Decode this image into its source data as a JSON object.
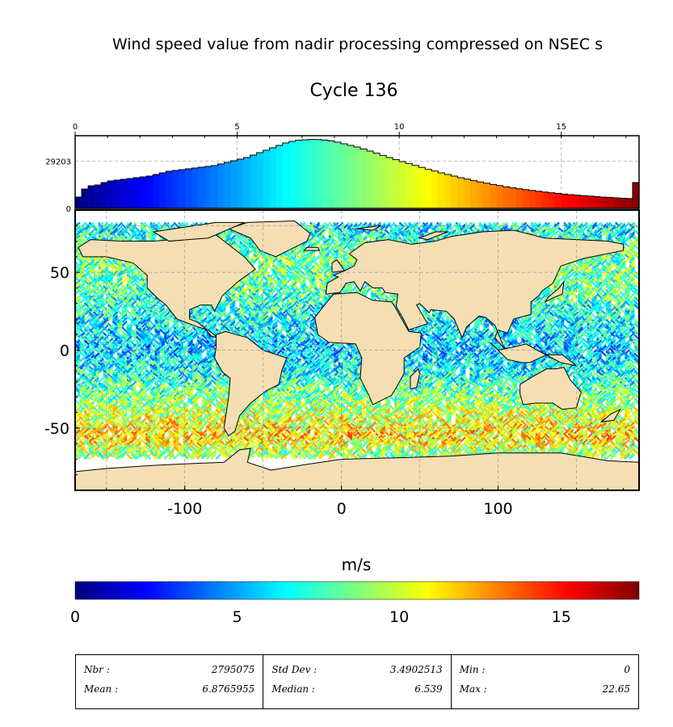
{
  "figure": {
    "title": "Wind speed value from nadir processing compressed on NSEC s",
    "subtitle": "Cycle 136",
    "colorbar_label": "m/s",
    "colormap": [
      "#00007f",
      "#0000ff",
      "#007fff",
      "#00ffff",
      "#7fff7f",
      "#ffff00",
      "#ff7f00",
      "#ff0000",
      "#7f0000"
    ],
    "land_color": "#f5deb3"
  },
  "stats": [
    [
      {
        "label": "Nbr :",
        "value": "2795075"
      },
      {
        "label": "Mean :",
        "value": "6.8765955"
      }
    ],
    [
      {
        "label": "Std Dev :",
        "value": "3.4902513"
      },
      {
        "label": "Median :",
        "value": "6.539"
      }
    ],
    [
      {
        "label": "Min :",
        "value": "0"
      },
      {
        "label": "Max :",
        "value": "22.65"
      }
    ]
  ],
  "chart_data": [
    {
      "type": "bar",
      "title": "",
      "xlabel": "m/s",
      "xlim": [
        0,
        17.4
      ],
      "x_ticks": [
        "0",
        "5",
        "10",
        "15"
      ],
      "x_tick_values": [
        0,
        5,
        10,
        15
      ],
      "y_ticks": [
        "0",
        "29203"
      ],
      "y_tick_values": [
        0,
        29203
      ],
      "ylim": [
        0,
        45000
      ],
      "grid": true,
      "bin_width": 0.2,
      "values": [
        7000,
        12000,
        14000,
        14500,
        16000,
        17000,
        17500,
        18000,
        18500,
        19000,
        19500,
        20000,
        21000,
        22000,
        23000,
        23500,
        24000,
        24500,
        25000,
        25500,
        26000,
        26500,
        27500,
        28500,
        29500,
        30500,
        31500,
        33000,
        34500,
        36000,
        37500,
        39000,
        40500,
        41500,
        42200,
        42500,
        42700,
        42600,
        42300,
        41800,
        41000,
        40000,
        39000,
        38000,
        36800,
        35500,
        34200,
        32800,
        31500,
        30200,
        29000,
        27800,
        26600,
        25400,
        24200,
        23100,
        22000,
        21000,
        20000,
        19000,
        18100,
        17200,
        16400,
        15600,
        14800,
        14100,
        13400,
        12800,
        12200,
        11600,
        11100,
        10600,
        10100,
        9700,
        9300,
        8900,
        8500,
        8200,
        7900,
        7600,
        7300,
        7000,
        6800,
        6500,
        6300,
        6100,
        16000
      ]
    },
    {
      "type": "heatmap",
      "title": "",
      "xlabel": "",
      "ylabel": "",
      "xlim": [
        -170,
        190
      ],
      "ylim": [
        -90,
        90
      ],
      "x_ticks": [
        "-100",
        "0",
        "100"
      ],
      "x_tick_values": [
        -100,
        0,
        100
      ],
      "y_ticks": [
        "50",
        "0",
        "-50"
      ],
      "y_tick_values": [
        50,
        0,
        -50
      ],
      "grid": true,
      "colorbar_range": [
        0,
        17.4
      ],
      "colorbar_ticks": [
        "0",
        "5",
        "10",
        "15"
      ],
      "colorbar_tick_values": [
        0,
        5,
        10,
        15
      ],
      "lat_bands": [
        {
          "lat": 80,
          "mean_speed": 6.5
        },
        {
          "lat": 60,
          "mean_speed": 8.5
        },
        {
          "lat": 40,
          "mean_speed": 8.0
        },
        {
          "lat": 20,
          "mean_speed": 6.5
        },
        {
          "lat": 0,
          "mean_speed": 5.5
        },
        {
          "lat": -20,
          "mean_speed": 7.5
        },
        {
          "lat": -40,
          "mean_speed": 10.0
        },
        {
          "lat": -55,
          "mean_speed": 11.5
        },
        {
          "lat": -65,
          "mean_speed": 9.0
        }
      ]
    }
  ]
}
